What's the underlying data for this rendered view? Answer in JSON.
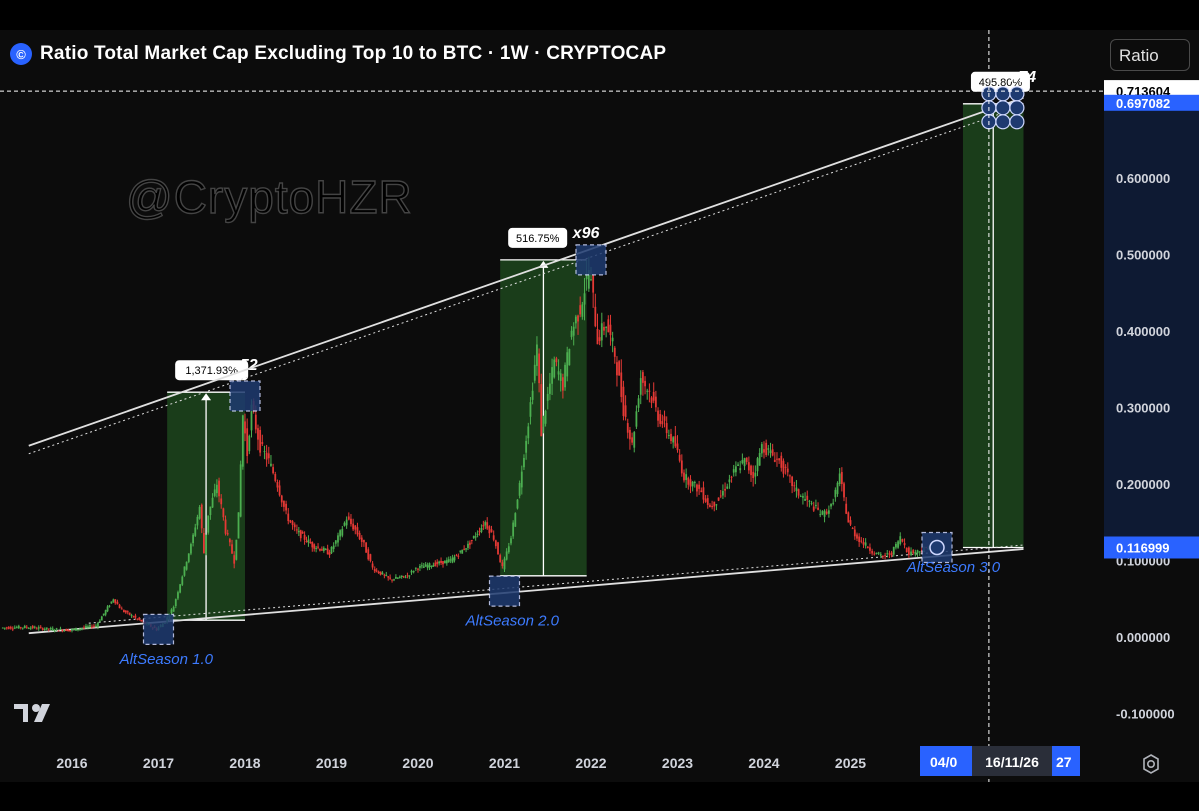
{
  "header": {
    "title": "Ratio Total Market Cap Excluding Top 10 to BTC · 1W · CRYPTOCAP",
    "logo_glyph": "©"
  },
  "ratio_button": {
    "label": "Ratio"
  },
  "watermark": "@CryptoHZR",
  "colors": {
    "up": "#26a69a",
    "down": "#ef5350",
    "candle_green": "#4caf50",
    "candle_red": "#e53935",
    "range_fill": "#1f4d1f",
    "accent_blue": "#2962ff",
    "trendline": "#e0e0e0"
  },
  "time_badges": {
    "left": "04/0",
    "center": "16/11/26",
    "right": "27"
  },
  "chart_data": {
    "type": "candlestick",
    "title": "Ratio Total Market Cap Excluding Top 10 to BTC · 1W · CRYPTOCAP",
    "x_ticks": [
      "2016",
      "2017",
      "2018",
      "2019",
      "2020",
      "2021",
      "2022",
      "2023",
      "2024",
      "2025"
    ],
    "y_ticks": [
      "0.600000",
      "0.500000",
      "0.400000",
      "0.300000",
      "0.200000",
      "0.100000",
      "0.000000",
      "-0.100000"
    ],
    "ylim": [
      -0.1,
      0.72
    ],
    "price_labels": {
      "crosshair": "0.713604",
      "upper": "0.697082",
      "current": "0.116999"
    },
    "price_series": [
      [
        2015.2,
        0.012
      ],
      [
        2015.5,
        0.013
      ],
      [
        2015.8,
        0.01
      ],
      [
        2016.0,
        0.009
      ],
      [
        2016.3,
        0.015
      ],
      [
        2016.5,
        0.05
      ],
      [
        2016.6,
        0.035
      ],
      [
        2016.8,
        0.022
      ],
      [
        2017.0,
        0.01
      ],
      [
        2017.1,
        0.02
      ],
      [
        2017.2,
        0.04
      ],
      [
        2017.3,
        0.08
      ],
      [
        2017.4,
        0.12
      ],
      [
        2017.5,
        0.17
      ],
      [
        2017.55,
        0.11
      ],
      [
        2017.6,
        0.16
      ],
      [
        2017.7,
        0.2
      ],
      [
        2017.8,
        0.14
      ],
      [
        2017.9,
        0.1
      ],
      [
        2017.95,
        0.16
      ],
      [
        2018.0,
        0.29
      ],
      [
        2018.05,
        0.24
      ],
      [
        2018.1,
        0.3
      ],
      [
        2018.2,
        0.25
      ],
      [
        2018.3,
        0.23
      ],
      [
        2018.4,
        0.2
      ],
      [
        2018.5,
        0.16
      ],
      [
        2018.6,
        0.14
      ],
      [
        2018.8,
        0.12
      ],
      [
        2019.0,
        0.11
      ],
      [
        2019.1,
        0.13
      ],
      [
        2019.2,
        0.155
      ],
      [
        2019.3,
        0.14
      ],
      [
        2019.4,
        0.12
      ],
      [
        2019.5,
        0.09
      ],
      [
        2019.7,
        0.075
      ],
      [
        2019.9,
        0.08
      ],
      [
        2020.0,
        0.09
      ],
      [
        2020.2,
        0.095
      ],
      [
        2020.4,
        0.1
      ],
      [
        2020.6,
        0.12
      ],
      [
        2020.8,
        0.15
      ],
      [
        2020.9,
        0.13
      ],
      [
        2021.0,
        0.09
      ],
      [
        2021.1,
        0.13
      ],
      [
        2021.2,
        0.2
      ],
      [
        2021.3,
        0.28
      ],
      [
        2021.4,
        0.38
      ],
      [
        2021.45,
        0.27
      ],
      [
        2021.5,
        0.3
      ],
      [
        2021.6,
        0.36
      ],
      [
        2021.7,
        0.33
      ],
      [
        2021.8,
        0.4
      ],
      [
        2021.9,
        0.43
      ],
      [
        2022.0,
        0.48
      ],
      [
        2022.05,
        0.44
      ],
      [
        2022.1,
        0.39
      ],
      [
        2022.2,
        0.41
      ],
      [
        2022.3,
        0.37
      ],
      [
        2022.4,
        0.3
      ],
      [
        2022.5,
        0.25
      ],
      [
        2022.6,
        0.34
      ],
      [
        2022.7,
        0.32
      ],
      [
        2022.8,
        0.29
      ],
      [
        2022.9,
        0.27
      ],
      [
        2023.0,
        0.25
      ],
      [
        2023.1,
        0.21
      ],
      [
        2023.2,
        0.2
      ],
      [
        2023.3,
        0.19
      ],
      [
        2023.4,
        0.17
      ],
      [
        2023.5,
        0.18
      ],
      [
        2023.6,
        0.2
      ],
      [
        2023.7,
        0.22
      ],
      [
        2023.8,
        0.23
      ],
      [
        2023.9,
        0.21
      ],
      [
        2024.0,
        0.25
      ],
      [
        2024.1,
        0.24
      ],
      [
        2024.2,
        0.23
      ],
      [
        2024.3,
        0.21
      ],
      [
        2024.4,
        0.19
      ],
      [
        2024.5,
        0.18
      ],
      [
        2024.6,
        0.17
      ],
      [
        2024.7,
        0.16
      ],
      [
        2024.8,
        0.17
      ],
      [
        2024.9,
        0.21
      ],
      [
        2025.0,
        0.15
      ],
      [
        2025.1,
        0.13
      ],
      [
        2025.2,
        0.12
      ],
      [
        2025.3,
        0.11
      ],
      [
        2025.4,
        0.105
      ],
      [
        2025.5,
        0.11
      ],
      [
        2025.6,
        0.13
      ],
      [
        2025.7,
        0.11
      ],
      [
        2025.8,
        0.112
      ],
      [
        2025.9,
        0.115
      ],
      [
        2026.0,
        0.117
      ]
    ],
    "trendlines": {
      "upper": [
        [
          2015.5,
          0.25
        ],
        [
          2027.0,
          0.705
        ]
      ],
      "lower": [
        [
          2015.5,
          0.005
        ],
        [
          2027.0,
          0.115
        ]
      ]
    },
    "ranges": [
      {
        "label": "1,371.93%",
        "x0": 2017.1,
        "x1": 2018.0,
        "y0": 0.022,
        "y1": 0.32,
        "multiplier": "x52"
      },
      {
        "label": "516.75%",
        "x0": 2020.95,
        "x1": 2021.95,
        "y0": 0.08,
        "y1": 0.493,
        "multiplier": "x96"
      },
      {
        "label": "495.80%",
        "x0": 2026.3,
        "x1": 2027.0,
        "y0": 0.117,
        "y1": 0.697,
        "multiplier": "x74"
      }
    ],
    "annotations": [
      {
        "text": "AltSeason 1.0",
        "x": 2016.55,
        "y": -0.035
      },
      {
        "text": "AltSeason 2.0",
        "x": 2020.55,
        "y": 0.015
      },
      {
        "text": "AltSeason 3.0",
        "x": 2025.65,
        "y": 0.085
      }
    ],
    "markers": [
      {
        "x": 2017.0,
        "y": 0.01
      },
      {
        "x": 2018.0,
        "y": 0.315
      },
      {
        "x": 2021.0,
        "y": 0.06
      },
      {
        "x": 2022.0,
        "y": 0.493
      },
      {
        "x": 2026.0,
        "y": 0.117
      }
    ],
    "crosshair": {
      "x": 2026.6,
      "y": 0.713604
    }
  }
}
